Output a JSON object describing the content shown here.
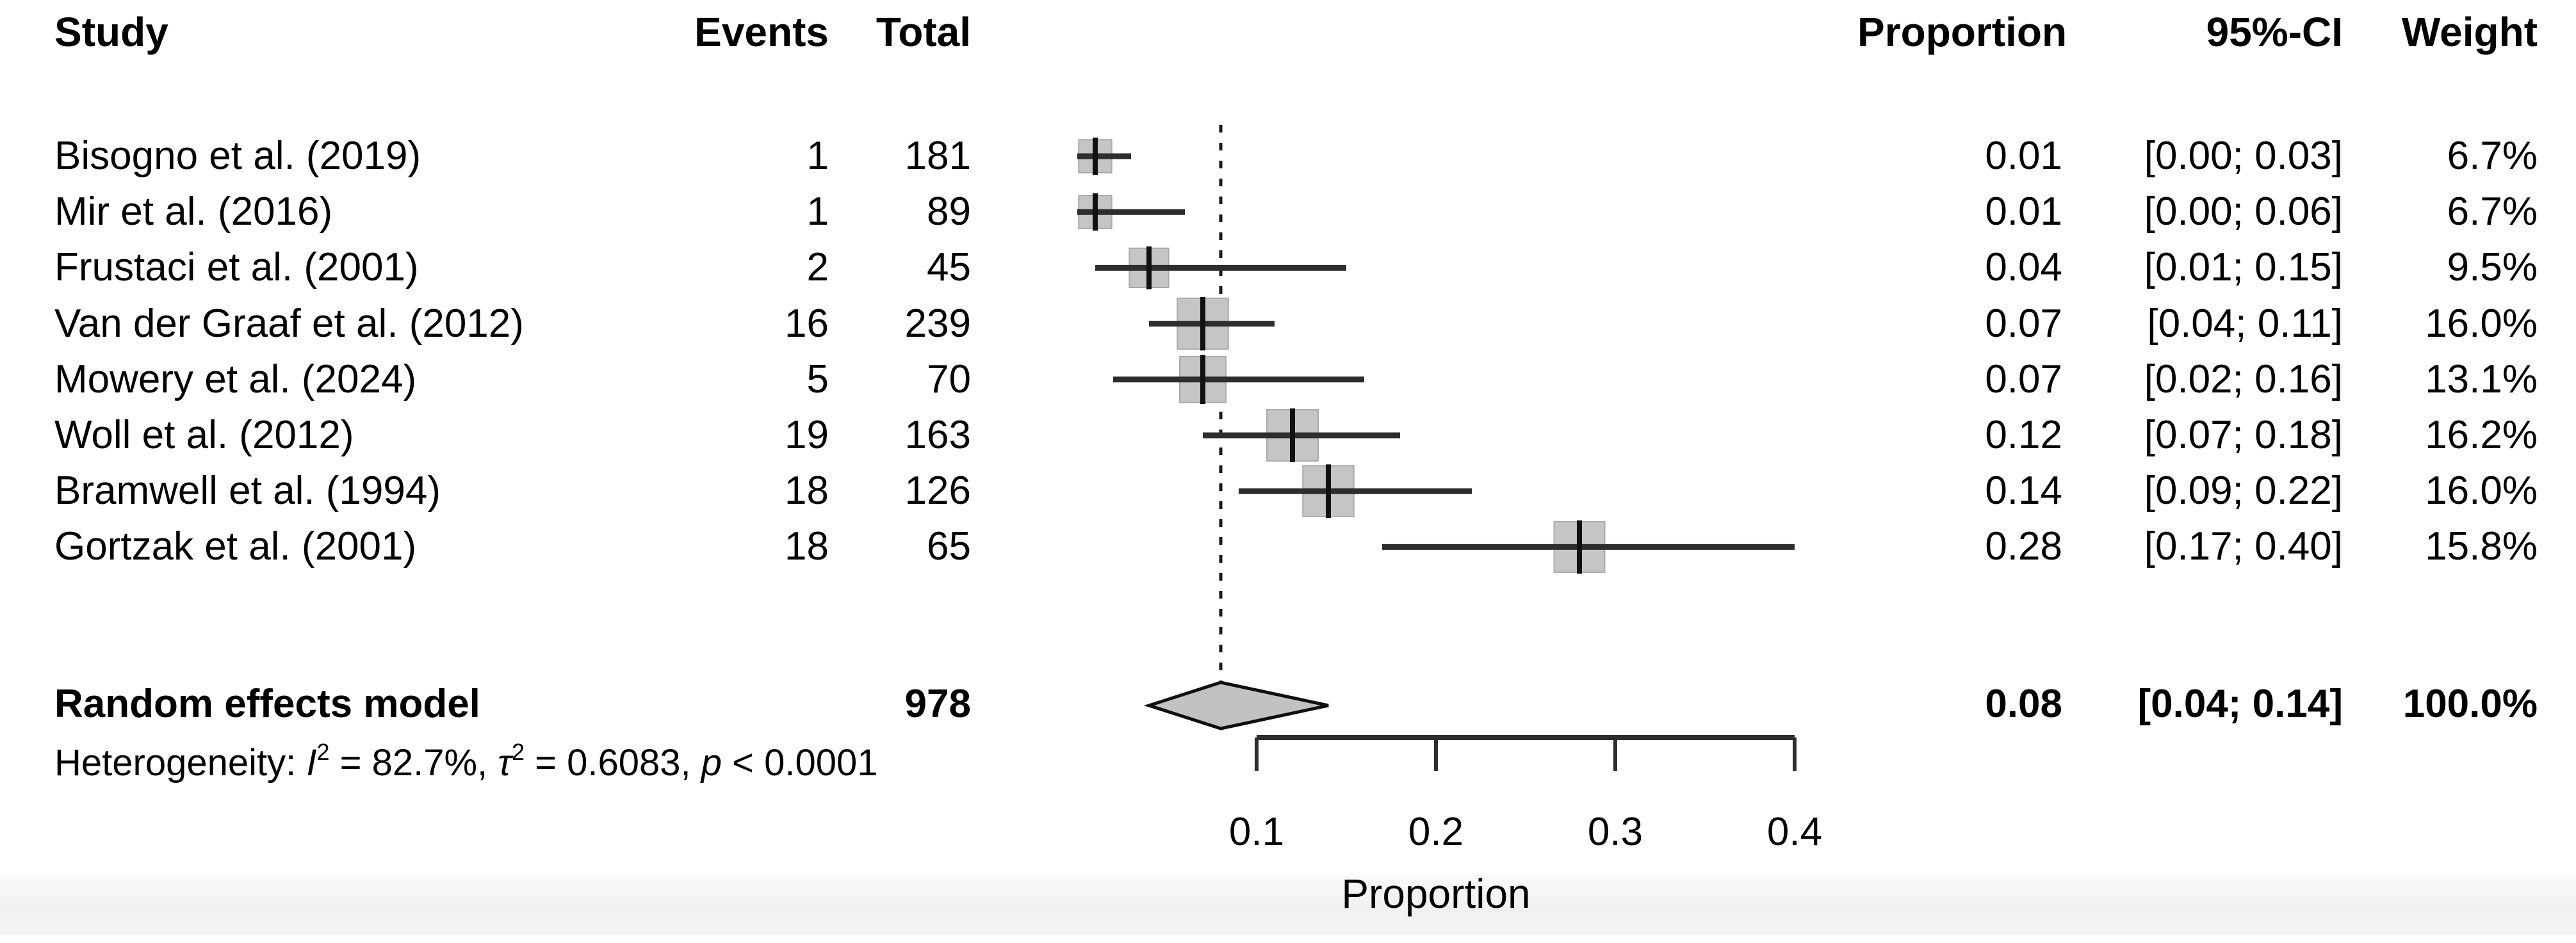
{
  "table": {
    "headers": {
      "study": "Study",
      "events": "Events",
      "total": "Total",
      "proportion": "Proportion",
      "ci": "95%-CI",
      "weight": "Weight"
    },
    "rows": [
      {
        "study": "Bisogno et al. (2019)",
        "events": "1",
        "total": "181",
        "proportion": "0.01",
        "ci": "[0.00; 0.03]",
        "weight": "6.7%"
      },
      {
        "study": "Mir et al. (2016)",
        "events": "1",
        "total": "89",
        "proportion": "0.01",
        "ci": "[0.00; 0.06]",
        "weight": "6.7%"
      },
      {
        "study": "Frustaci et al. (2001)",
        "events": "2",
        "total": "45",
        "proportion": "0.04",
        "ci": "[0.01; 0.15]",
        "weight": "9.5%"
      },
      {
        "study": "Van der Graaf et al. (2012)",
        "events": "16",
        "total": "239",
        "proportion": "0.07",
        "ci": "[0.04; 0.11]",
        "weight": "16.0%"
      },
      {
        "study": "Mowery et al. (2024)",
        "events": "5",
        "total": "70",
        "proportion": "0.07",
        "ci": "[0.02; 0.16]",
        "weight": "13.1%"
      },
      {
        "study": "Woll et al. (2012)",
        "events": "19",
        "total": "163",
        "proportion": "0.12",
        "ci": "[0.07; 0.18]",
        "weight": "16.2%"
      },
      {
        "study": "Bramwell et al. (1994)",
        "events": "18",
        "total": "126",
        "proportion": "0.14",
        "ci": "[0.09; 0.22]",
        "weight": "16.0%"
      },
      {
        "study": "Gortzak et al. (2001)",
        "events": "18",
        "total": "65",
        "proportion": "0.28",
        "ci": "[0.17; 0.40]",
        "weight": "15.8%"
      }
    ],
    "summary": {
      "label": "Random effects model",
      "total": "978",
      "proportion": "0.08",
      "ci": "[0.04; 0.14]",
      "weight": "100.0%"
    },
    "heterogeneity": {
      "prefix": "Heterogeneity: ",
      "i_sym": "I",
      "i_sup": "2",
      "seg1": " = 82.7%, ",
      "tau_sym": "τ",
      "tau_sup": "2",
      "seg2": " = 0.6083, ",
      "p_sym": "p",
      "seg3": " < 0.0001"
    }
  },
  "chart_data": {
    "type": "forest",
    "xlabel": "Proportion",
    "x_range": [
      0,
      0.4
    ],
    "ref_line": 0.08,
    "axis_ticks": [
      {
        "value": 0.1,
        "label": "0.1"
      },
      {
        "value": 0.2,
        "label": "0.2"
      },
      {
        "value": 0.3,
        "label": "0.3"
      },
      {
        "value": 0.4,
        "label": "0.4"
      }
    ],
    "studies": [
      {
        "name": "Bisogno et al. (2019)",
        "events": 1,
        "total": 181,
        "proportion": 0.01,
        "ci_low": 0.0,
        "ci_high": 0.03,
        "weight_pct": 6.7
      },
      {
        "name": "Mir et al. (2016)",
        "events": 1,
        "total": 89,
        "proportion": 0.01,
        "ci_low": 0.0,
        "ci_high": 0.06,
        "weight_pct": 6.7
      },
      {
        "name": "Frustaci et al. (2001)",
        "events": 2,
        "total": 45,
        "proportion": 0.04,
        "ci_low": 0.01,
        "ci_high": 0.15,
        "weight_pct": 9.5
      },
      {
        "name": "Van der Graaf et al. (2012)",
        "events": 16,
        "total": 239,
        "proportion": 0.07,
        "ci_low": 0.04,
        "ci_high": 0.11,
        "weight_pct": 16.0
      },
      {
        "name": "Mowery et al. (2024)",
        "events": 5,
        "total": 70,
        "proportion": 0.07,
        "ci_low": 0.02,
        "ci_high": 0.16,
        "weight_pct": 13.1
      },
      {
        "name": "Woll et al. (2012)",
        "events": 19,
        "total": 163,
        "proportion": 0.12,
        "ci_low": 0.07,
        "ci_high": 0.18,
        "weight_pct": 16.2
      },
      {
        "name": "Bramwell et al. (1994)",
        "events": 18,
        "total": 126,
        "proportion": 0.14,
        "ci_low": 0.09,
        "ci_high": 0.22,
        "weight_pct": 16.0
      },
      {
        "name": "Gortzak et al. (2001)",
        "events": 18,
        "total": 65,
        "proportion": 0.28,
        "ci_low": 0.17,
        "ci_high": 0.4,
        "weight_pct": 15.8
      }
    ],
    "pooled": {
      "label": "Random effects model",
      "total": 978,
      "proportion": 0.08,
      "ci_low": 0.04,
      "ci_high": 0.14,
      "weight_pct": 100.0
    },
    "heterogeneity_stats": {
      "I2_pct": 82.7,
      "tau2": 0.6083,
      "p": "< 0.0001"
    },
    "legend_position": "none",
    "grid": false,
    "colors": {
      "square": "#c5c5c5",
      "square_border": "#a9a9a9",
      "ci_line": "#2d2d2d",
      "estimate_tick": "#111111",
      "diamond_fill": "#c2c2c2",
      "diamond_border": "#0f0f0f",
      "ref_line": "#1a1a1a",
      "axis": "#2d2d2d",
      "text": "#000000"
    }
  }
}
